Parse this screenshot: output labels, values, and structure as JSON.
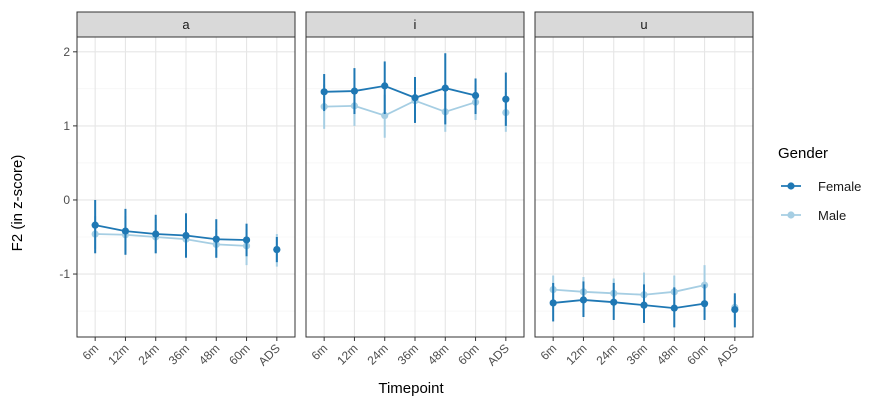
{
  "chart_data": {
    "type": "line",
    "xlabel": "Timepoint",
    "ylabel": "F2 (in z-score)",
    "categories": [
      "6m",
      "12m",
      "24m",
      "36m",
      "48m",
      "60m",
      "ADS"
    ],
    "ylim": [
      -1.85,
      2.2
    ],
    "yticks": [
      -1,
      0,
      1,
      2
    ],
    "grid": true,
    "legend": {
      "title": "Gender",
      "position": "right"
    },
    "colors": {
      "Female": "#1f78b4",
      "Male": "#a6cee3"
    },
    "facets": [
      {
        "label": "a",
        "series": [
          {
            "name": "Female",
            "values": [
              -0.34,
              -0.42,
              -0.46,
              -0.48,
              -0.53,
              -0.54,
              -0.67
            ],
            "lower": [
              -0.72,
              -0.74,
              -0.72,
              -0.78,
              -0.78,
              -0.76,
              -0.84
            ],
            "upper": [
              0.0,
              -0.12,
              -0.2,
              -0.18,
              -0.26,
              -0.32,
              -0.5
            ]
          },
          {
            "name": "Male",
            "values": [
              -0.46,
              -0.47,
              -0.5,
              -0.53,
              -0.6,
              -0.62,
              -0.67
            ],
            "lower": [
              -0.66,
              -0.68,
              -0.72,
              -0.76,
              -0.78,
              -0.88,
              -0.9
            ],
            "upper": [
              -0.22,
              -0.22,
              -0.26,
              -0.28,
              -0.4,
              -0.4,
              -0.46
            ]
          }
        ]
      },
      {
        "label": "i",
        "series": [
          {
            "name": "Female",
            "values": [
              1.46,
              1.47,
              1.54,
              1.38,
              1.51,
              1.41,
              1.36
            ],
            "lower": [
              1.2,
              1.16,
              1.16,
              1.04,
              1.02,
              1.16,
              1.0
            ],
            "upper": [
              1.7,
              1.78,
              1.87,
              1.66,
              1.98,
              1.64,
              1.72
            ]
          },
          {
            "name": "Male",
            "values": [
              1.26,
              1.27,
              1.14,
              1.34,
              1.19,
              1.32,
              1.18
            ],
            "lower": [
              0.96,
              1.0,
              0.84,
              1.06,
              0.92,
              1.08,
              0.92
            ],
            "upper": [
              1.56,
              1.54,
              1.42,
              1.6,
              1.44,
              1.56,
              1.46
            ]
          }
        ]
      },
      {
        "label": "u",
        "series": [
          {
            "name": "Female",
            "values": [
              -1.39,
              -1.35,
              -1.38,
              -1.42,
              -1.46,
              -1.4,
              -1.48
            ],
            "lower": [
              -1.64,
              -1.58,
              -1.62,
              -1.66,
              -1.72,
              -1.62,
              -1.72
            ],
            "upper": [
              -1.12,
              -1.1,
              -1.12,
              -1.14,
              -1.18,
              -1.14,
              -1.26
            ]
          },
          {
            "name": "Male",
            "values": [
              -1.21,
              -1.24,
              -1.26,
              -1.28,
              -1.24,
              -1.15,
              -1.45
            ],
            "lower": [
              -1.38,
              -1.42,
              -1.44,
              -1.5,
              -1.44,
              -1.36,
              -1.62
            ],
            "upper": [
              -1.02,
              -1.04,
              -1.06,
              -0.98,
              -1.02,
              -0.88,
              -1.3
            ]
          }
        ]
      }
    ]
  }
}
